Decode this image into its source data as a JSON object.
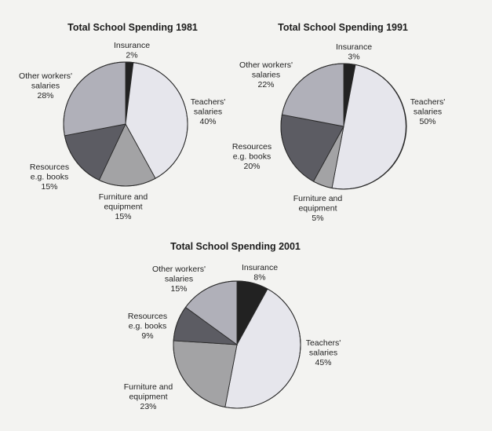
{
  "chart_data": [
    {
      "type": "pie",
      "title": "Total School Spending 1981",
      "slices": [
        {
          "label": [
            "Insurance"
          ],
          "value": 2,
          "value_label": "2%",
          "color": "#222222"
        },
        {
          "label": [
            "Teachers'",
            "salaries"
          ],
          "value": 40,
          "value_label": "40%",
          "color": "#e6e6ec"
        },
        {
          "label": [
            "Furniture and",
            "equipment"
          ],
          "value": 15,
          "value_label": "15%",
          "color": "#a3a3a5"
        },
        {
          "label": [
            "Resources",
            "e.g. books"
          ],
          "value": 15,
          "value_label": "15%",
          "color": "#5c5c63"
        },
        {
          "label": [
            "Other workers'",
            "salaries"
          ],
          "value": 28,
          "value_label": "28%",
          "color": "#b0b0b9"
        }
      ]
    },
    {
      "type": "pie",
      "title": "Total School Spending 1991",
      "slices": [
        {
          "label": [
            "Insurance"
          ],
          "value": 3,
          "value_label": "3%",
          "color": "#222222"
        },
        {
          "label": [
            "Teachers'",
            "salaries"
          ],
          "value": 50,
          "value_label": "50%",
          "color": "#e6e6ec"
        },
        {
          "label": [
            "Furniture and",
            "equipment"
          ],
          "value": 5,
          "value_label": "5%",
          "color": "#a3a3a5"
        },
        {
          "label": [
            "Resources",
            "e.g. books"
          ],
          "value": 20,
          "value_label": "20%",
          "color": "#5c5c63"
        },
        {
          "label": [
            "Other workers'",
            "salaries"
          ],
          "value": 22,
          "value_label": "22%",
          "color": "#b0b0b9"
        }
      ]
    },
    {
      "type": "pie",
      "title": "Total School Spending 2001",
      "slices": [
        {
          "label": [
            "Insurance"
          ],
          "value": 8,
          "value_label": "8%",
          "color": "#222222"
        },
        {
          "label": [
            "Teachers'",
            "salaries"
          ],
          "value": 45,
          "value_label": "45%",
          "color": "#e6e6ec"
        },
        {
          "label": [
            "Furniture and",
            "equipment"
          ],
          "value": 23,
          "value_label": "23%",
          "color": "#a3a3a5"
        },
        {
          "label": [
            "Resources",
            "e.g. books"
          ],
          "value": 9,
          "value_label": "9%",
          "color": "#5c5c63"
        },
        {
          "label": [
            "Other workers'",
            "salaries"
          ],
          "value": 15,
          "value_label": "15%",
          "color": "#b0b0b9"
        }
      ]
    }
  ]
}
